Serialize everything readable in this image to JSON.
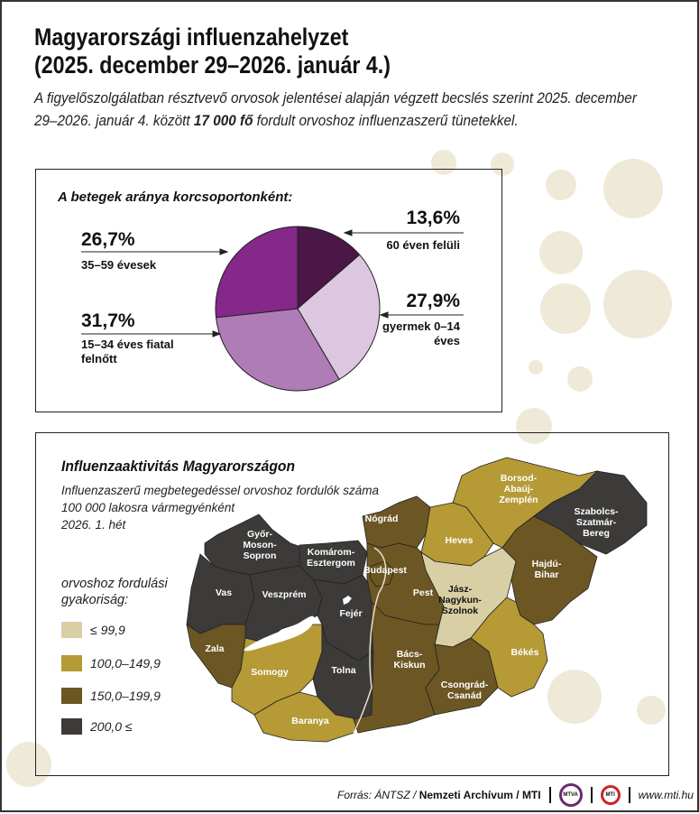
{
  "header": {
    "title_line1": "Magyarországi influenzahelyzet",
    "title_line2": "(2025. december 29–2026. január 4.)",
    "intro_part1": "A figyelőszolgálatban résztvevő orvosok jelentései alapján végzett becslés szerint 2025. december 29–2026. január 4. között ",
    "intro_bold": "17 000 fő",
    "intro_part2": " fordult orvoshoz influenzaszerű tünetekkel."
  },
  "chart_data": [
    {
      "type": "pie",
      "title": "A betegek aránya korcsoportonként:",
      "slices": [
        {
          "value": 13.6,
          "label": "13,6%",
          "desc": "60 éven felüli",
          "color": "#4a1747"
        },
        {
          "value": 27.9,
          "label": "27,9%",
          "desc": "gyermek 0–14 éves",
          "color": "#dcc6e0"
        },
        {
          "value": 31.7,
          "label": "31,7%",
          "desc": "15–34 éves fiatal felnőtt",
          "color": "#b07cb6"
        },
        {
          "value": 26.7,
          "label": "26,7%",
          "desc": "35–59 évesek",
          "color": "#86278a"
        }
      ]
    },
    {
      "type": "choropleth-map",
      "title": "Influenzaaktivitás Magyarországon",
      "subtitle": [
        "Influenzaszerű megbetegedéssel orvoshoz fordulók száma",
        "100 000 lakosra vármegyénként",
        "2026. 1. hét"
      ],
      "legend_title": "orvoshoz fordulási gyakoriság:",
      "classes": [
        {
          "label": "≤ 99,9",
          "color": "#d9cfa4"
        },
        {
          "label": "100,0–149,9",
          "color": "#b59a36"
        },
        {
          "label": "150,0–199,9",
          "color": "#6c5724"
        },
        {
          "label": "200,0 ≤",
          "color": "#3d3b39"
        }
      ],
      "regions": [
        {
          "name": "Győr-Moson-Sopron",
          "class": 3
        },
        {
          "name": "Komárom-Esztergom",
          "class": 3
        },
        {
          "name": "Vas",
          "class": 3
        },
        {
          "name": "Veszprém",
          "class": 3
        },
        {
          "name": "Fejér",
          "class": 3
        },
        {
          "name": "Zala",
          "class": 2
        },
        {
          "name": "Somogy",
          "class": 1
        },
        {
          "name": "Tolna",
          "class": 3
        },
        {
          "name": "Baranya",
          "class": 1
        },
        {
          "name": "Nógrád",
          "class": 2
        },
        {
          "name": "Heves",
          "class": 1
        },
        {
          "name": "Borsod-Abaúj-Zemplén",
          "class": 1
        },
        {
          "name": "Szabolcs-Szatmár-Bereg",
          "class": 3
        },
        {
          "name": "Hajdú-Bihar",
          "class": 2
        },
        {
          "name": "Jász-Nagykun-Szolnok",
          "class": 0
        },
        {
          "name": "Pest",
          "class": 2
        },
        {
          "name": "Budapest",
          "class": 2
        },
        {
          "name": "Bács-Kiskun",
          "class": 2
        },
        {
          "name": "Csongrád-Csanád",
          "class": 2
        },
        {
          "name": "Békés",
          "class": 1
        }
      ]
    }
  ],
  "footer": {
    "source_prefix": "Forrás: ÁNTSZ / ",
    "source_bold": "Nemzeti Archívum / MTI",
    "logo1": "MTVA",
    "logo2": "MTI",
    "url": "www.mti.hu"
  }
}
